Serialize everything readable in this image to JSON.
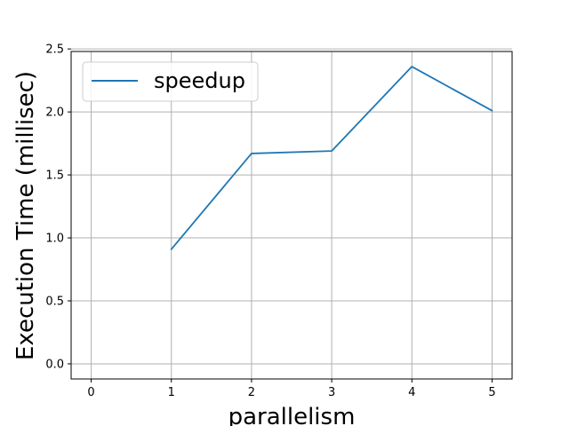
{
  "chart_data": {
    "type": "line",
    "title": "",
    "xlabel": "parallelism",
    "ylabel": "Execution Time (millisec)",
    "xlim": [
      -0.25,
      5.25
    ],
    "ylim": [
      -0.12,
      2.48
    ],
    "xticks": [
      "0",
      "1",
      "2",
      "3",
      "4",
      "5"
    ],
    "yticks": [
      "0.0",
      "0.5",
      "1.0",
      "1.5",
      "2.0",
      "2.5"
    ],
    "grid": true,
    "legend": "top-left",
    "series": [
      {
        "name": "speedup",
        "color": "#1f77b4",
        "x": [
          1,
          2,
          3,
          4,
          5
        ],
        "y": [
          0.91,
          1.67,
          1.69,
          2.36,
          2.01
        ]
      }
    ]
  }
}
